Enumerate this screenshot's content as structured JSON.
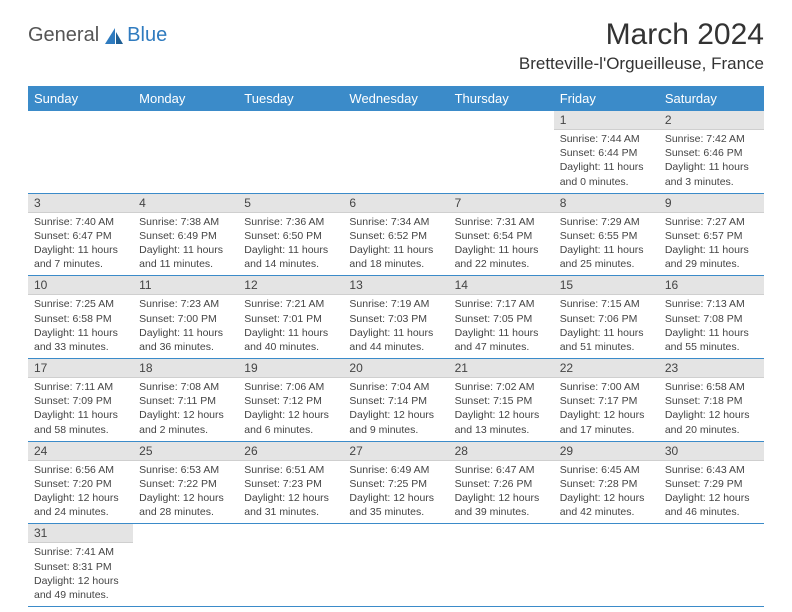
{
  "logo": {
    "part1": "General",
    "part2": "Blue"
  },
  "title": "March 2024",
  "location": "Bretteville-l'Orgueilleuse, France",
  "header_bg": "#3b8bc9",
  "header_fg": "#ffffff",
  "daynum_bg": "#e4e4e4",
  "row_border": "#3b8bc9",
  "day_headers": [
    "Sunday",
    "Monday",
    "Tuesday",
    "Wednesday",
    "Thursday",
    "Friday",
    "Saturday"
  ],
  "weeks": [
    [
      null,
      null,
      null,
      null,
      null,
      {
        "n": "1",
        "sr": "Sunrise: 7:44 AM",
        "ss": "Sunset: 6:44 PM",
        "d1": "Daylight: 11 hours",
        "d2": "and 0 minutes."
      },
      {
        "n": "2",
        "sr": "Sunrise: 7:42 AM",
        "ss": "Sunset: 6:46 PM",
        "d1": "Daylight: 11 hours",
        "d2": "and 3 minutes."
      }
    ],
    [
      {
        "n": "3",
        "sr": "Sunrise: 7:40 AM",
        "ss": "Sunset: 6:47 PM",
        "d1": "Daylight: 11 hours",
        "d2": "and 7 minutes."
      },
      {
        "n": "4",
        "sr": "Sunrise: 7:38 AM",
        "ss": "Sunset: 6:49 PM",
        "d1": "Daylight: 11 hours",
        "d2": "and 11 minutes."
      },
      {
        "n": "5",
        "sr": "Sunrise: 7:36 AM",
        "ss": "Sunset: 6:50 PM",
        "d1": "Daylight: 11 hours",
        "d2": "and 14 minutes."
      },
      {
        "n": "6",
        "sr": "Sunrise: 7:34 AM",
        "ss": "Sunset: 6:52 PM",
        "d1": "Daylight: 11 hours",
        "d2": "and 18 minutes."
      },
      {
        "n": "7",
        "sr": "Sunrise: 7:31 AM",
        "ss": "Sunset: 6:54 PM",
        "d1": "Daylight: 11 hours",
        "d2": "and 22 minutes."
      },
      {
        "n": "8",
        "sr": "Sunrise: 7:29 AM",
        "ss": "Sunset: 6:55 PM",
        "d1": "Daylight: 11 hours",
        "d2": "and 25 minutes."
      },
      {
        "n": "9",
        "sr": "Sunrise: 7:27 AM",
        "ss": "Sunset: 6:57 PM",
        "d1": "Daylight: 11 hours",
        "d2": "and 29 minutes."
      }
    ],
    [
      {
        "n": "10",
        "sr": "Sunrise: 7:25 AM",
        "ss": "Sunset: 6:58 PM",
        "d1": "Daylight: 11 hours",
        "d2": "and 33 minutes."
      },
      {
        "n": "11",
        "sr": "Sunrise: 7:23 AM",
        "ss": "Sunset: 7:00 PM",
        "d1": "Daylight: 11 hours",
        "d2": "and 36 minutes."
      },
      {
        "n": "12",
        "sr": "Sunrise: 7:21 AM",
        "ss": "Sunset: 7:01 PM",
        "d1": "Daylight: 11 hours",
        "d2": "and 40 minutes."
      },
      {
        "n": "13",
        "sr": "Sunrise: 7:19 AM",
        "ss": "Sunset: 7:03 PM",
        "d1": "Daylight: 11 hours",
        "d2": "and 44 minutes."
      },
      {
        "n": "14",
        "sr": "Sunrise: 7:17 AM",
        "ss": "Sunset: 7:05 PM",
        "d1": "Daylight: 11 hours",
        "d2": "and 47 minutes."
      },
      {
        "n": "15",
        "sr": "Sunrise: 7:15 AM",
        "ss": "Sunset: 7:06 PM",
        "d1": "Daylight: 11 hours",
        "d2": "and 51 minutes."
      },
      {
        "n": "16",
        "sr": "Sunrise: 7:13 AM",
        "ss": "Sunset: 7:08 PM",
        "d1": "Daylight: 11 hours",
        "d2": "and 55 minutes."
      }
    ],
    [
      {
        "n": "17",
        "sr": "Sunrise: 7:11 AM",
        "ss": "Sunset: 7:09 PM",
        "d1": "Daylight: 11 hours",
        "d2": "and 58 minutes."
      },
      {
        "n": "18",
        "sr": "Sunrise: 7:08 AM",
        "ss": "Sunset: 7:11 PM",
        "d1": "Daylight: 12 hours",
        "d2": "and 2 minutes."
      },
      {
        "n": "19",
        "sr": "Sunrise: 7:06 AM",
        "ss": "Sunset: 7:12 PM",
        "d1": "Daylight: 12 hours",
        "d2": "and 6 minutes."
      },
      {
        "n": "20",
        "sr": "Sunrise: 7:04 AM",
        "ss": "Sunset: 7:14 PM",
        "d1": "Daylight: 12 hours",
        "d2": "and 9 minutes."
      },
      {
        "n": "21",
        "sr": "Sunrise: 7:02 AM",
        "ss": "Sunset: 7:15 PM",
        "d1": "Daylight: 12 hours",
        "d2": "and 13 minutes."
      },
      {
        "n": "22",
        "sr": "Sunrise: 7:00 AM",
        "ss": "Sunset: 7:17 PM",
        "d1": "Daylight: 12 hours",
        "d2": "and 17 minutes."
      },
      {
        "n": "23",
        "sr": "Sunrise: 6:58 AM",
        "ss": "Sunset: 7:18 PM",
        "d1": "Daylight: 12 hours",
        "d2": "and 20 minutes."
      }
    ],
    [
      {
        "n": "24",
        "sr": "Sunrise: 6:56 AM",
        "ss": "Sunset: 7:20 PM",
        "d1": "Daylight: 12 hours",
        "d2": "and 24 minutes."
      },
      {
        "n": "25",
        "sr": "Sunrise: 6:53 AM",
        "ss": "Sunset: 7:22 PM",
        "d1": "Daylight: 12 hours",
        "d2": "and 28 minutes."
      },
      {
        "n": "26",
        "sr": "Sunrise: 6:51 AM",
        "ss": "Sunset: 7:23 PM",
        "d1": "Daylight: 12 hours",
        "d2": "and 31 minutes."
      },
      {
        "n": "27",
        "sr": "Sunrise: 6:49 AM",
        "ss": "Sunset: 7:25 PM",
        "d1": "Daylight: 12 hours",
        "d2": "and 35 minutes."
      },
      {
        "n": "28",
        "sr": "Sunrise: 6:47 AM",
        "ss": "Sunset: 7:26 PM",
        "d1": "Daylight: 12 hours",
        "d2": "and 39 minutes."
      },
      {
        "n": "29",
        "sr": "Sunrise: 6:45 AM",
        "ss": "Sunset: 7:28 PM",
        "d1": "Daylight: 12 hours",
        "d2": "and 42 minutes."
      },
      {
        "n": "30",
        "sr": "Sunrise: 6:43 AM",
        "ss": "Sunset: 7:29 PM",
        "d1": "Daylight: 12 hours",
        "d2": "and 46 minutes."
      }
    ],
    [
      {
        "n": "31",
        "sr": "Sunrise: 7:41 AM",
        "ss": "Sunset: 8:31 PM",
        "d1": "Daylight: 12 hours",
        "d2": "and 49 minutes."
      },
      null,
      null,
      null,
      null,
      null,
      null
    ]
  ]
}
